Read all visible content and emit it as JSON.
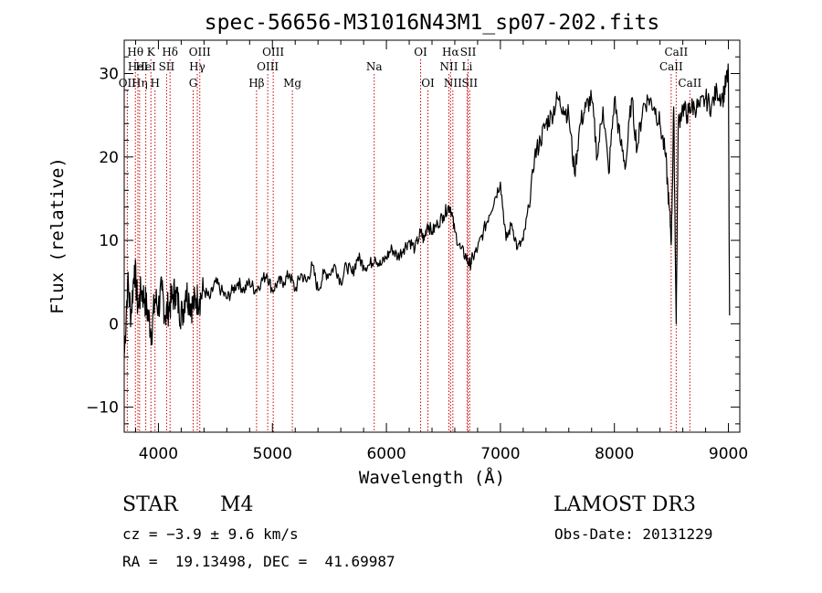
{
  "chart_data": {
    "type": "line",
    "title": "spec-56656-M31016N43M1_sp07-202.fits",
    "xlabel": "Wavelength (Å)",
    "ylabel": "Flux (relative)",
    "xlim": [
      3700,
      9100
    ],
    "ylim": [
      -13,
      34
    ],
    "xticks": [
      4000,
      5000,
      6000,
      7000,
      8000,
      9000
    ],
    "yticks": [
      -10,
      0,
      10,
      20,
      30
    ],
    "xtick_labels": [
      "4000",
      "5000",
      "6000",
      "7000",
      "8000",
      "9000"
    ],
    "ytick_labels": [
      "−10",
      "0",
      "10",
      "20",
      "30"
    ],
    "series": [
      {
        "name": "spectrum",
        "x": [
          3700,
          3730,
          3760,
          3790,
          3820,
          3850,
          3880,
          3910,
          3940,
          3970,
          4000,
          4030,
          4060,
          4090,
          4120,
          4150,
          4180,
          4210,
          4240,
          4270,
          4300,
          4330,
          4360,
          4400,
          4450,
          4500,
          4550,
          4600,
          4650,
          4700,
          4750,
          4800,
          4850,
          4900,
          4950,
          5000,
          5050,
          5100,
          5150,
          5200,
          5250,
          5300,
          5350,
          5400,
          5450,
          5500,
          5550,
          5600,
          5650,
          5700,
          5750,
          5800,
          5850,
          5900,
          5950,
          6000,
          6050,
          6100,
          6150,
          6200,
          6250,
          6300,
          6330,
          6360,
          6400,
          6450,
          6500,
          6540,
          6563,
          6600,
          6650,
          6700,
          6730,
          6760,
          6800,
          6850,
          6900,
          6950,
          7000,
          7050,
          7100,
          7150,
          7200,
          7250,
          7300,
          7350,
          7400,
          7450,
          7500,
          7550,
          7600,
          7650,
          7700,
          7750,
          7800,
          7850,
          7900,
          7950,
          8000,
          8050,
          8100,
          8150,
          8200,
          8250,
          8300,
          8350,
          8400,
          8450,
          8480,
          8500,
          8520,
          8542,
          8560,
          8600,
          8640,
          8662,
          8700,
          8750,
          8800,
          8850,
          8900,
          8950,
          8980,
          9000,
          9010
        ],
        "values": [
          -4,
          5,
          1,
          7,
          2,
          4,
          3,
          1,
          -1,
          3,
          2,
          4,
          1,
          2,
          3,
          4,
          2,
          1,
          4,
          3,
          2,
          3,
          3,
          4,
          3,
          5,
          4,
          3,
          4,
          5,
          4,
          5,
          4,
          5,
          6,
          4,
          5,
          5,
          6,
          4,
          6,
          5,
          7,
          4,
          6,
          6,
          7,
          5,
          7,
          6,
          8,
          7,
          7,
          8,
          7,
          8,
          9,
          8,
          9,
          10,
          9,
          11,
          10,
          12,
          11,
          12,
          13,
          14,
          14,
          11,
          9,
          8,
          7,
          8,
          9,
          11,
          13,
          15,
          17,
          10,
          12,
          9,
          10,
          14,
          20,
          22,
          24,
          25,
          27,
          26,
          25,
          18,
          24,
          26,
          27,
          20,
          26,
          18,
          27,
          22,
          19,
          27,
          21,
          26,
          27,
          26,
          24,
          20,
          14,
          10,
          26,
          0,
          24,
          26,
          25,
          26,
          26,
          26,
          27,
          26,
          28,
          27,
          29,
          30,
          1
        ]
      }
    ],
    "line_markers": [
      {
        "label": "Hθ",
        "wl": 3798,
        "row": 0
      },
      {
        "label": "OII",
        "wl": 3727,
        "row": 2
      },
      {
        "label": "HeI",
        "wl": 3820,
        "row": 1
      },
      {
        "label": "Hη",
        "wl": 3835,
        "row": 2
      },
      {
        "label": "K",
        "wl": 3934,
        "row": 0
      },
      {
        "label": "HeI",
        "wl": 3889,
        "row": 1
      },
      {
        "label": "H",
        "wl": 3970,
        "row": 2
      },
      {
        "label": "Hδ",
        "wl": 4102,
        "row": 0
      },
      {
        "label": "SII",
        "wl": 4072,
        "row": 1
      },
      {
        "label": "OIII",
        "wl": 4363,
        "row": 0
      },
      {
        "label": "Hγ",
        "wl": 4341,
        "row": 1
      },
      {
        "label": "G",
        "wl": 4305,
        "row": 2
      },
      {
        "label": "OIII",
        "wl": 5007,
        "row": 0
      },
      {
        "label": "OIII",
        "wl": 4959,
        "row": 1
      },
      {
        "label": "Hβ",
        "wl": 4861,
        "row": 2
      },
      {
        "label": "Mg",
        "wl": 5175,
        "row": 2
      },
      {
        "label": "Na",
        "wl": 5893,
        "row": 1
      },
      {
        "label": "OI",
        "wl": 6300,
        "row": 0
      },
      {
        "label": "OI",
        "wl": 6364,
        "row": 2
      },
      {
        "label": "Hα",
        "wl": 6563,
        "row": 0
      },
      {
        "label": "SII",
        "wl": 6717,
        "row": 0
      },
      {
        "label": "NII",
        "wl": 6548,
        "row": 1
      },
      {
        "label": "Li",
        "wl": 6708,
        "row": 1
      },
      {
        "label": "NII",
        "wl": 6583,
        "row": 2
      },
      {
        "label": "SII",
        "wl": 6731,
        "row": 2
      },
      {
        "label": "CaII",
        "wl": 8542,
        "row": 0
      },
      {
        "label": "CaII",
        "wl": 8498,
        "row": 1
      },
      {
        "label": "CaII",
        "wl": 8662,
        "row": 2
      }
    ],
    "marker_color": "#cc0000"
  },
  "info": {
    "object_class": "STAR",
    "subclass": "M4",
    "survey": "LAMOST DR3",
    "cz": "cz = −3.9 ± 9.6 km/s",
    "obs_date": "Obs-Date: 20131229",
    "coords": "RA =  19.13498, DEC =  41.69987"
  }
}
